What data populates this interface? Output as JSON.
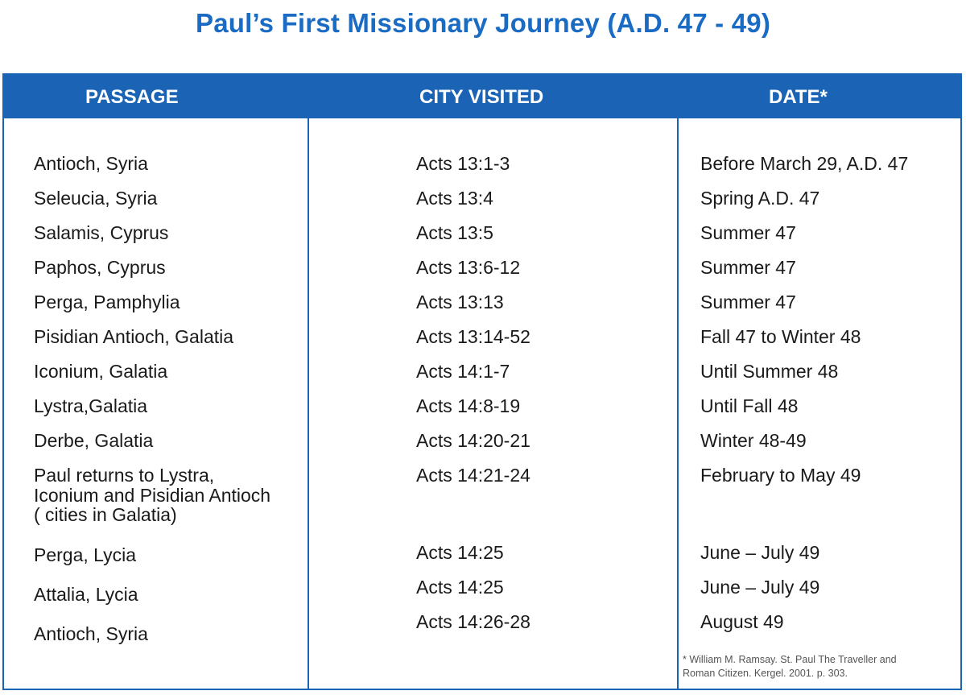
{
  "title": "Paul’s First Missionary Journey (A.D. 47 - 49)",
  "headers": {
    "passage": "PASSAGE",
    "city": "CITY VISITED",
    "date": "DATE*"
  },
  "rows": [
    {
      "passage": "Antioch, Syria",
      "city": "Acts 13:1-3",
      "date": "Before March 29, A.D. 47"
    },
    {
      "passage": "Seleucia, Syria",
      "city": "Acts 13:4",
      "date": "Spring A.D. 47"
    },
    {
      "passage": "Salamis, Cyprus",
      "city": "Acts 13:5",
      "date": "Summer 47"
    },
    {
      "passage": "Paphos, Cyprus",
      "city": "Acts 13:6-12",
      "date": "Summer 47"
    },
    {
      "passage": "Perga, Pamphylia",
      "city": "Acts 13:13",
      "date": "Summer 47"
    },
    {
      "passage": "Pisidian Antioch, Galatia",
      "city": "Acts 13:14-52",
      "date": "Fall 47 to Winter 48"
    },
    {
      "passage": "Iconium, Galatia",
      "city": "Acts 14:1-7",
      "date": "Until Summer 48"
    },
    {
      "passage": "Lystra,Galatia",
      "city": "Acts 14:8-19",
      "date": "Until Fall 48"
    },
    {
      "passage": "Derbe, Galatia",
      "city": "Acts 14:20-21",
      "date": "Winter 48-49"
    },
    {
      "passage_lines": [
        "Paul returns to Lystra,",
        "Iconium and Pisidian Antioch",
        "( cities in Galatia)"
      ],
      "city": "Acts 14:21-24",
      "date": "February to May 49"
    },
    {
      "passage": "Perga, Lycia",
      "city": "Acts 14:25",
      "date": "June – July 49"
    },
    {
      "passage": "Attalia, Lycia",
      "city": "Acts 14:25",
      "date": "June – July 49"
    },
    {
      "passage": "Antioch, Syria",
      "city": "Acts 14:26-28",
      "date": "August 49"
    }
  ],
  "footnote": {
    "line1": "* William M. Ramsay. St. Paul The Traveller and",
    "line2": "Roman Citizen. Kergel. 2001. p. 303."
  },
  "colors": {
    "accent": "#1a63b5",
    "title": "#1a6bc4",
    "header_text": "#ffffff",
    "body_text": "#1a1a1a"
  }
}
